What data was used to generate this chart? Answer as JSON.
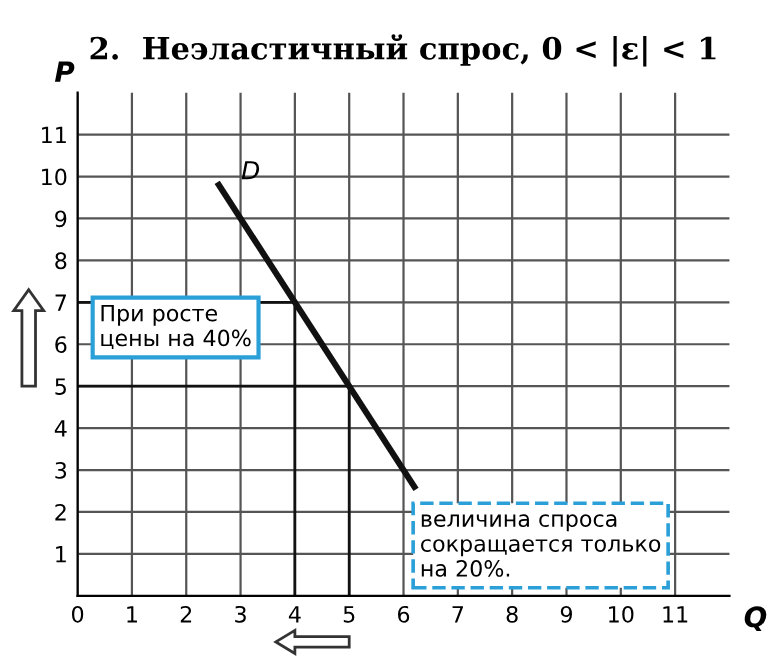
{
  "chart_data": {
    "type": "line",
    "title": "2.  Неэластичный спрос, 0 < |ε| < 1",
    "xlabel": "Q",
    "ylabel": "P",
    "series": [
      {
        "color": "#111111",
        "x": [
          2.6,
          6.2
        ],
        "values": [
          9.8,
          2.6
        ]
      },
      {
        "color": "#111111",
        "x": [
          0,
          4,
          4
        ],
        "values": [
          7,
          7,
          0
        ]
      },
      {
        "color": "#111111",
        "x": [
          0,
          5,
          5
        ],
        "values": [
          5,
          5,
          0
        ]
      }
    ],
    "annotations": [
      {
        "text": "D",
        "x": 2.6,
        "y": 9.8
      },
      "При росте\nцены на 40%",
      "величина спроса\nсокращается только\nна 20%."
    ],
    "xlim": [
      0,
      12
    ],
    "ylim": [
      0,
      12
    ],
    "xticks": [
      0,
      1,
      2,
      3,
      4,
      5,
      6,
      7,
      8,
      9,
      10,
      11
    ],
    "yticks": [
      1,
      2,
      3,
      4,
      5,
      6,
      7,
      8,
      9,
      10,
      11
    ],
    "grid": true,
    "marker": "none",
    "line_style": "solid"
  }
}
